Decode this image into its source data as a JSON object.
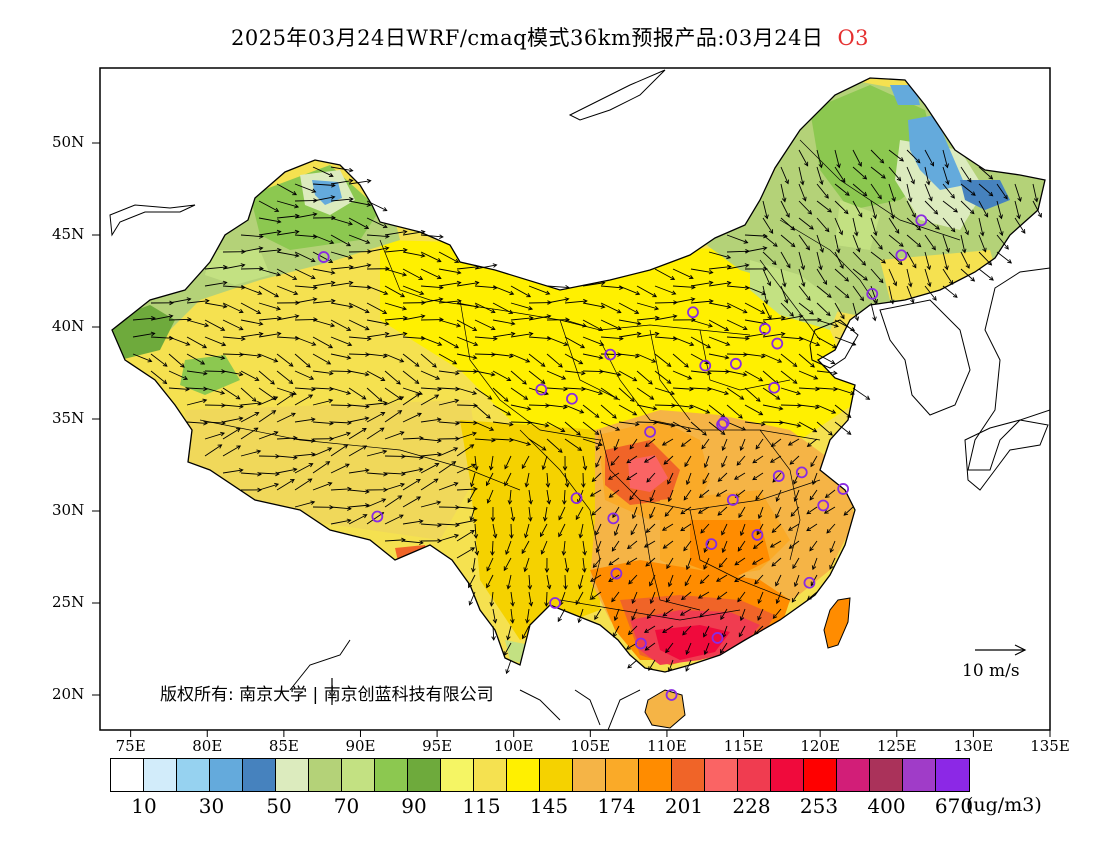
{
  "title": {
    "text": "2025年03月24日WRF/cmaq模式36km预报产品:03月24日",
    "species": "O3"
  },
  "axes": {
    "lat_ticks": [
      "50N",
      "45N",
      "40N",
      "35N",
      "30N",
      "25N",
      "20N"
    ],
    "lat_values": [
      50,
      45,
      40,
      35,
      30,
      25,
      20
    ],
    "lon_ticks": [
      "75E",
      "80E",
      "85E",
      "90E",
      "95E",
      "100E",
      "105E",
      "110E",
      "115E",
      "120E",
      "125E",
      "130E",
      "135E"
    ],
    "lon_values": [
      75,
      80,
      85,
      90,
      95,
      100,
      105,
      110,
      115,
      120,
      125,
      130,
      135
    ],
    "lon_range": [
      73,
      135
    ],
    "lat_range": [
      18,
      54
    ]
  },
  "copyright": "版权所有: 南京大学 | 南京创蓝科技有限公司",
  "wind_reference": {
    "label": "10 m/s",
    "speed": 10
  },
  "legend": {
    "unit": "(ug/m3)",
    "labels": [
      "10",
      "30",
      "50",
      "70",
      "90",
      "115",
      "145",
      "174",
      "201",
      "228",
      "253",
      "400",
      "670"
    ],
    "colors": [
      "#ffffff",
      "#d2ecfa",
      "#96d2f0",
      "#64aadc",
      "#4682be",
      "#dcebbe",
      "#b4d278",
      "#c3e182",
      "#8cc850",
      "#6eaa3c",
      "#f5f564",
      "#f5e150",
      "#fff000",
      "#f5d200",
      "#f5b446",
      "#faaa28",
      "#ff8c00",
      "#f06428",
      "#fa6464",
      "#f03c50",
      "#f00a3c",
      "#ff0000",
      "#d21e78",
      "#aa325a",
      "#a03cc8",
      "#8c28e6"
    ]
  },
  "cities": [
    [
      87.6,
      43.8
    ],
    [
      91.1,
      29.7
    ],
    [
      101.8,
      36.6
    ],
    [
      103.8,
      36.1
    ],
    [
      106.3,
      38.5
    ],
    [
      111.7,
      40.8
    ],
    [
      112.5,
      37.9
    ],
    [
      114.5,
      38.0
    ],
    [
      116.4,
      39.9
    ],
    [
      117.2,
      39.1
    ],
    [
      117.0,
      36.7
    ],
    [
      113.6,
      34.7
    ],
    [
      108.9,
      34.3
    ],
    [
      104.1,
      30.7
    ],
    [
      106.5,
      29.6
    ],
    [
      106.7,
      26.6
    ],
    [
      102.7,
      25.0
    ],
    [
      108.3,
      22.8
    ],
    [
      110.3,
      20.0
    ],
    [
      113.3,
      23.1
    ],
    [
      114.3,
      30.6
    ],
    [
      112.9,
      28.2
    ],
    [
      115.9,
      28.7
    ],
    [
      117.3,
      31.9
    ],
    [
      118.8,
      32.1
    ],
    [
      121.5,
      31.2
    ],
    [
      120.2,
      30.3
    ],
    [
      119.3,
      26.1
    ],
    [
      123.4,
      41.8
    ],
    [
      125.3,
      43.9
    ],
    [
      126.6,
      45.8
    ],
    [
      113.7,
      34.8
    ]
  ]
}
